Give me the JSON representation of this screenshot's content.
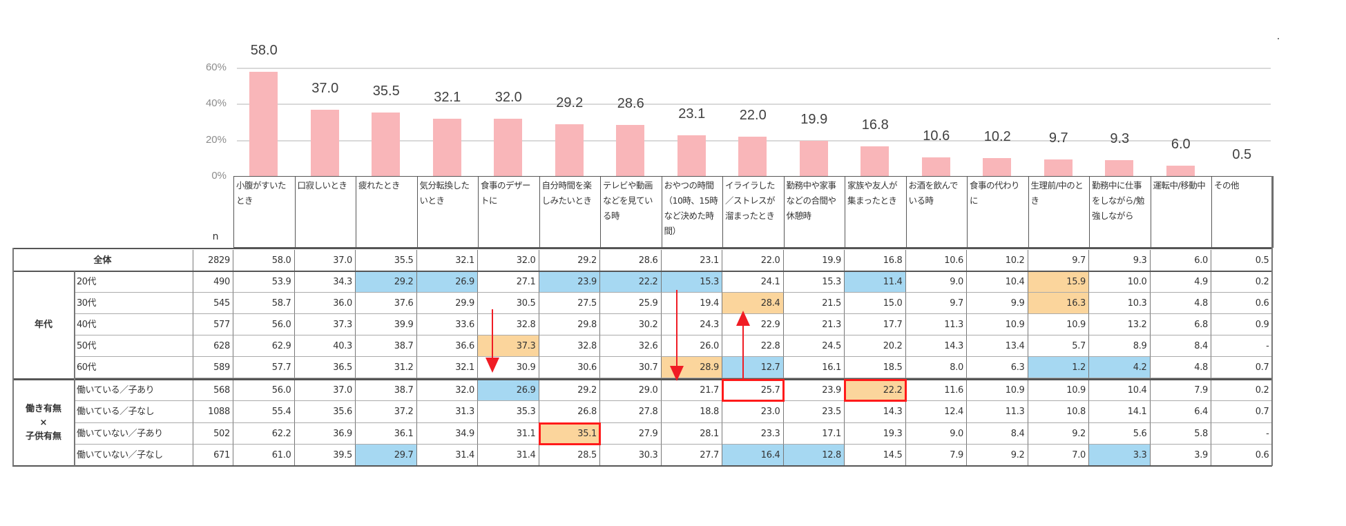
{
  "chart_data": {
    "type": "bar",
    "title": "",
    "xlabel": "",
    "ylabel": "",
    "ylim": [
      0,
      60
    ],
    "yticks": [
      "0%",
      "20%",
      "40%",
      "60%"
    ],
    "grid": true,
    "bar_color": "#f9b6b9",
    "categories": [
      "小腹がすいたとき",
      "口寂しいとき",
      "疲れたとき",
      "気分転換したいとき",
      "食事のデザートに",
      "自分時間を楽しみたいとき",
      "テレビや動画などを見ている時",
      "おやつの時間（10時、15時など決めた時間）",
      "イライラした／ストレスが溜まったとき",
      "勤務中や家事などの合間や休憩時",
      "家族や友人が集まったとき",
      "お酒を飲んでいる時",
      "食事の代わりに",
      "生理前/中のとき",
      "勤務中に仕事をしながら/勉強しながら",
      "運転中/移動中",
      "その他"
    ],
    "values": [
      58.0,
      37.0,
      35.5,
      32.1,
      32.0,
      29.2,
      28.6,
      23.1,
      22.0,
      19.9,
      16.8,
      10.6,
      10.2,
      9.7,
      9.3,
      6.0,
      0.5
    ],
    "value_labels": [
      "58.0",
      "37.0",
      "35.5",
      "32.1",
      "32.0",
      "29.2",
      "28.6",
      "23.1",
      "22.0",
      "19.9",
      "16.8",
      "10.6",
      "10.2",
      "9.7",
      "9.3",
      "6.0",
      "0.5"
    ]
  },
  "table": {
    "n_header": "n",
    "headers": [
      "小腹がすいたとき",
      "口寂しいとき",
      "疲れたとき",
      "気分転換したいとき",
      "食事のデザートに",
      "自分時間を楽しみたいとき",
      "テレビや動画などを見ている時",
      "おやつの時間（10時、15時など決めた時間）",
      "イライラした／ストレスが溜まったとき",
      "勤務中や家事などの合間や休憩時",
      "家族や友人が集まったとき",
      "お酒を飲んでいる時",
      "食事の代わりに",
      "生理前/中のとき",
      "勤務中に仕事をしながら/勉強しながら",
      "運転中/移動中",
      "その他"
    ],
    "total": {
      "label": "全体",
      "n": "2829",
      "values": [
        "58.0",
        "37.0",
        "35.5",
        "32.1",
        "32.0",
        "29.2",
        "28.6",
        "23.1",
        "22.0",
        "19.9",
        "16.8",
        "10.6",
        "10.2",
        "9.7",
        "9.3",
        "6.0",
        "0.5"
      ]
    },
    "groups": [
      {
        "label": "年代",
        "rows": [
          {
            "label": "20代",
            "n": "490",
            "values": [
              "53.9",
              "34.3",
              "29.2",
              "26.9",
              "27.1",
              "23.9",
              "22.2",
              "15.3",
              "24.1",
              "15.3",
              "11.4",
              "9.0",
              "10.4",
              "15.9",
              "10.0",
              "4.9",
              "0.2"
            ],
            "highlights": [
              "",
              "",
              "blue",
              "blue",
              "",
              "blue",
              "blue",
              "blue",
              "",
              "",
              "blue",
              "",
              "",
              "orange",
              "",
              "",
              ""
            ]
          },
          {
            "label": "30代",
            "n": "545",
            "values": [
              "58.7",
              "36.0",
              "37.6",
              "29.9",
              "30.5",
              "27.5",
              "25.9",
              "19.4",
              "28.4",
              "21.5",
              "15.0",
              "9.7",
              "9.9",
              "16.3",
              "10.3",
              "4.8",
              "0.6"
            ],
            "highlights": [
              "",
              "",
              "",
              "",
              "",
              "",
              "",
              "",
              "orange",
              "",
              "",
              "",
              "",
              "orange",
              "",
              "",
              ""
            ]
          },
          {
            "label": "40代",
            "n": "577",
            "values": [
              "56.0",
              "37.3",
              "39.9",
              "33.6",
              "32.8",
              "29.8",
              "30.2",
              "24.3",
              "22.9",
              "21.3",
              "17.7",
              "11.3",
              "10.9",
              "10.9",
              "13.2",
              "6.8",
              "0.9"
            ],
            "highlights": [
              "",
              "",
              "",
              "",
              "",
              "",
              "",
              "",
              "",
              "",
              "",
              "",
              "",
              "",
              "",
              "",
              ""
            ]
          },
          {
            "label": "50代",
            "n": "628",
            "values": [
              "62.9",
              "40.3",
              "38.7",
              "36.6",
              "37.3",
              "32.8",
              "32.6",
              "26.0",
              "22.8",
              "24.5",
              "20.2",
              "14.3",
              "13.4",
              "5.7",
              "8.9",
              "8.4",
              "-"
            ],
            "highlights": [
              "",
              "",
              "",
              "",
              "orange",
              "",
              "",
              "",
              "",
              "",
              "",
              "",
              "",
              "",
              "",
              "",
              ""
            ]
          },
          {
            "label": "60代",
            "n": "589",
            "values": [
              "57.7",
              "36.5",
              "31.2",
              "32.1",
              "30.9",
              "30.6",
              "30.7",
              "28.9",
              "12.7",
              "16.1",
              "18.5",
              "8.0",
              "6.3",
              "1.2",
              "4.2",
              "4.8",
              "0.7"
            ],
            "highlights": [
              "",
              "",
              "",
              "",
              "",
              "",
              "",
              "orange",
              "blue",
              "",
              "",
              "",
              "",
              "blue",
              "blue",
              "",
              ""
            ]
          }
        ]
      },
      {
        "label_lines": [
          "働き有無",
          "×",
          "子供有無"
        ],
        "rows": [
          {
            "label": "働いている／子あり",
            "n": "568",
            "values": [
              "56.0",
              "37.0",
              "38.7",
              "32.0",
              "26.9",
              "29.2",
              "29.0",
              "21.7",
              "25.7",
              "23.9",
              "22.2",
              "11.6",
              "10.9",
              "10.9",
              "10.4",
              "7.9",
              "0.2"
            ],
            "highlights": [
              "",
              "",
              "",
              "",
              "blue",
              "",
              "",
              "",
              "",
              "",
              "orange",
              "",
              "",
              "",
              "",
              "",
              ""
            ]
          },
          {
            "label": "働いている／子なし",
            "n": "1088",
            "values": [
              "55.4",
              "35.6",
              "37.2",
              "31.3",
              "35.3",
              "26.8",
              "27.8",
              "18.8",
              "23.0",
              "23.5",
              "14.3",
              "12.4",
              "11.3",
              "10.8",
              "14.1",
              "6.4",
              "0.7"
            ],
            "highlights": [
              "",
              "",
              "",
              "",
              "",
              "",
              "",
              "",
              "",
              "",
              "",
              "",
              "",
              "",
              "",
              "",
              ""
            ]
          },
          {
            "label": "働いていない／子あり",
            "n": "502",
            "values": [
              "62.2",
              "36.9",
              "36.1",
              "34.9",
              "31.1",
              "35.1",
              "27.9",
              "28.1",
              "23.3",
              "17.1",
              "19.3",
              "9.0",
              "8.4",
              "9.2",
              "5.6",
              "5.8",
              "-"
            ],
            "highlights": [
              "",
              "",
              "",
              "",
              "",
              "orange",
              "",
              "",
              "",
              "",
              "",
              "",
              "",
              "",
              "",
              "",
              ""
            ]
          },
          {
            "label": "働いていない／子なし",
            "n": "671",
            "values": [
              "61.0",
              "39.5",
              "29.7",
              "31.4",
              "31.4",
              "28.5",
              "30.3",
              "27.7",
              "16.4",
              "12.8",
              "14.5",
              "7.9",
              "9.2",
              "7.0",
              "3.3",
              "3.9",
              "0.6"
            ],
            "highlights": [
              "",
              "",
              "blue",
              "",
              "",
              "",
              "",
              "",
              "blue",
              "blue",
              "",
              "",
              "",
              "",
              "blue",
              "",
              ""
            ]
          }
        ]
      }
    ],
    "red_boxes": [
      {
        "row": "働いている／子あり",
        "column": "イライラした／ストレスが溜まったとき",
        "value": "25.7"
      },
      {
        "row": "働いている／子あり",
        "column": "家族や友人が集まったとき",
        "value": "22.2"
      },
      {
        "row": "働いていない／子あり",
        "column": "自分時間を楽しみたいとき",
        "value": "35.1"
      }
    ],
    "colors": {
      "highlight_high": "#fbd59c",
      "highlight_low": "#a6d8f2",
      "annotation_red": "#f01c24"
    }
  }
}
